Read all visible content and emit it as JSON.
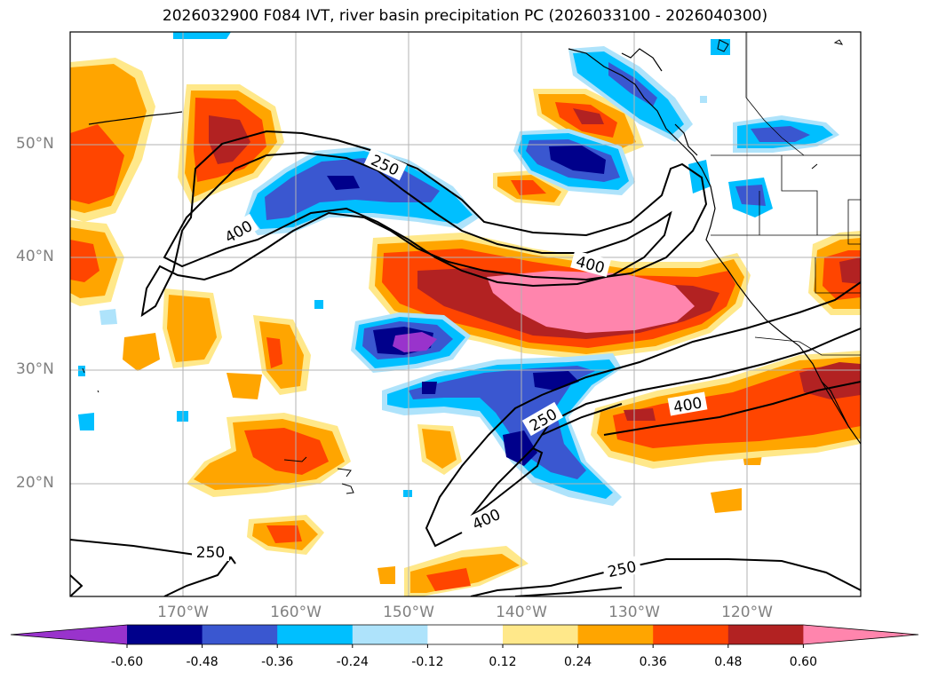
{
  "title": "2026032900 F084 IVT, river basin precipitation PC (2026033100 - 2026040300)",
  "lat_labels": [
    "50°N",
    "40°N",
    "30°N",
    "20°N"
  ],
  "lon_labels": [
    "170°W",
    "160°W",
    "150°W",
    "140°W",
    "130°W",
    "120°W"
  ],
  "contour_labels": [
    "250",
    "400",
    "400",
    "250",
    "400",
    "250",
    "250",
    "400"
  ],
  "colorbar": {
    "colors": [
      "#9933cc",
      "#00008b",
      "#3a57d0",
      "#00bfff",
      "#aee3fb",
      "#ffffff",
      "#ffe88a",
      "#ffa500",
      "#ff4500",
      "#b22222",
      "#ff85ad"
    ],
    "ticks": [
      "-0.60",
      "-0.48",
      "-0.36",
      "-0.24",
      "-0.12",
      "0.12",
      "0.24",
      "0.36",
      "0.48",
      "0.60"
    ]
  }
}
